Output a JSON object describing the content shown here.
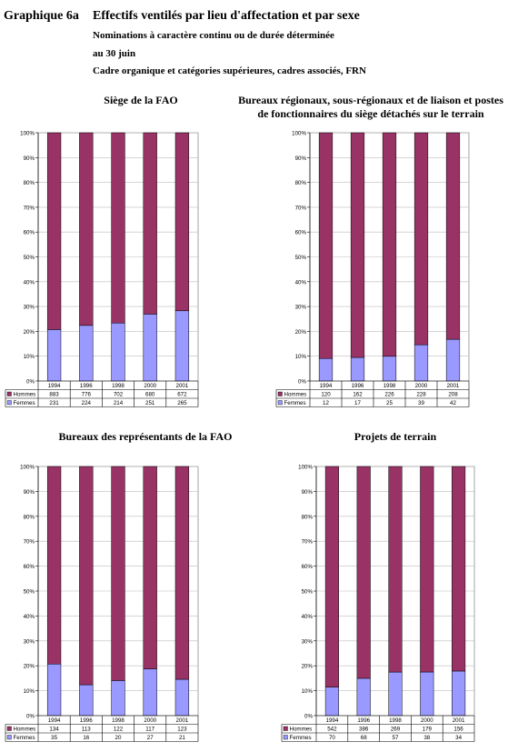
{
  "header": {
    "label": "Graphique 6a",
    "title": "Effectifs ventilés par lieu d'affectation et par sexe",
    "sub1": "Nominations à caractère continu ou de durée déterminée",
    "sub2": "au 30 juin",
    "sub3": "Cadre organique et catégories supérieures, cadres associés, FRN"
  },
  "colors": {
    "hommes": "#993366",
    "femmes": "#9999FF"
  },
  "chart_data": [
    {
      "type": "bar",
      "stacked": "percent",
      "title": "Siège de la FAO",
      "categories": [
        "1994",
        "1996",
        "1998",
        "2000",
        "2001"
      ],
      "ylim": [
        0,
        100
      ],
      "yticks": [
        "0%",
        "10%",
        "20%",
        "30%",
        "40%",
        "50%",
        "60%",
        "70%",
        "80%",
        "90%",
        "100%"
      ],
      "legend": "data-table",
      "series": [
        {
          "name": "Hommes",
          "values": [
            883,
            776,
            702,
            680,
            672
          ]
        },
        {
          "name": "Femmes",
          "values": [
            231,
            224,
            214,
            251,
            265
          ]
        }
      ]
    },
    {
      "type": "bar",
      "stacked": "percent",
      "title": "Bureaux régionaux, sous-régionaux et de liaison et postes de fonctionnaires du siège détachés sur le terrain",
      "categories": [
        "1994",
        "1996",
        "1998",
        "2000",
        "2001"
      ],
      "ylim": [
        0,
        100
      ],
      "yticks": [
        "0%",
        "10%",
        "20%",
        "30%",
        "40%",
        "50%",
        "60%",
        "70%",
        "80%",
        "90%",
        "100%"
      ],
      "legend": "data-table",
      "series": [
        {
          "name": "Hommes",
          "values": [
            120,
            162,
            226,
            228,
            208
          ]
        },
        {
          "name": "Femmes",
          "values": [
            12,
            17,
            25,
            39,
            42
          ]
        }
      ]
    },
    {
      "type": "bar",
      "stacked": "percent",
      "title": "Bureaux des représentants de la FAO",
      "categories": [
        "1994",
        "1996",
        "1998",
        "2000",
        "2001"
      ],
      "ylim": [
        0,
        100
      ],
      "yticks": [
        "0%",
        "10%",
        "20%",
        "30%",
        "40%",
        "50%",
        "60%",
        "70%",
        "80%",
        "90%",
        "100%"
      ],
      "legend": "data-table",
      "series": [
        {
          "name": "Hommes",
          "values": [
            134,
            113,
            122,
            117,
            123
          ]
        },
        {
          "name": "Femmes",
          "values": [
            35,
            16,
            20,
            27,
            21
          ]
        }
      ]
    },
    {
      "type": "bar",
      "stacked": "percent",
      "title": "Projets de terrain",
      "categories": [
        "1994",
        "1996",
        "1998",
        "2000",
        "2001"
      ],
      "ylim": [
        0,
        100
      ],
      "yticks": [
        "0%",
        "10%",
        "20%",
        "30%",
        "40%",
        "50%",
        "60%",
        "70%",
        "80%",
        "90%",
        "100%"
      ],
      "legend": "data-table",
      "series": [
        {
          "name": "Hommes",
          "values": [
            542,
            386,
            269,
            179,
            156
          ]
        },
        {
          "name": "Femmes",
          "values": [
            70,
            68,
            57,
            38,
            34
          ]
        }
      ]
    }
  ]
}
